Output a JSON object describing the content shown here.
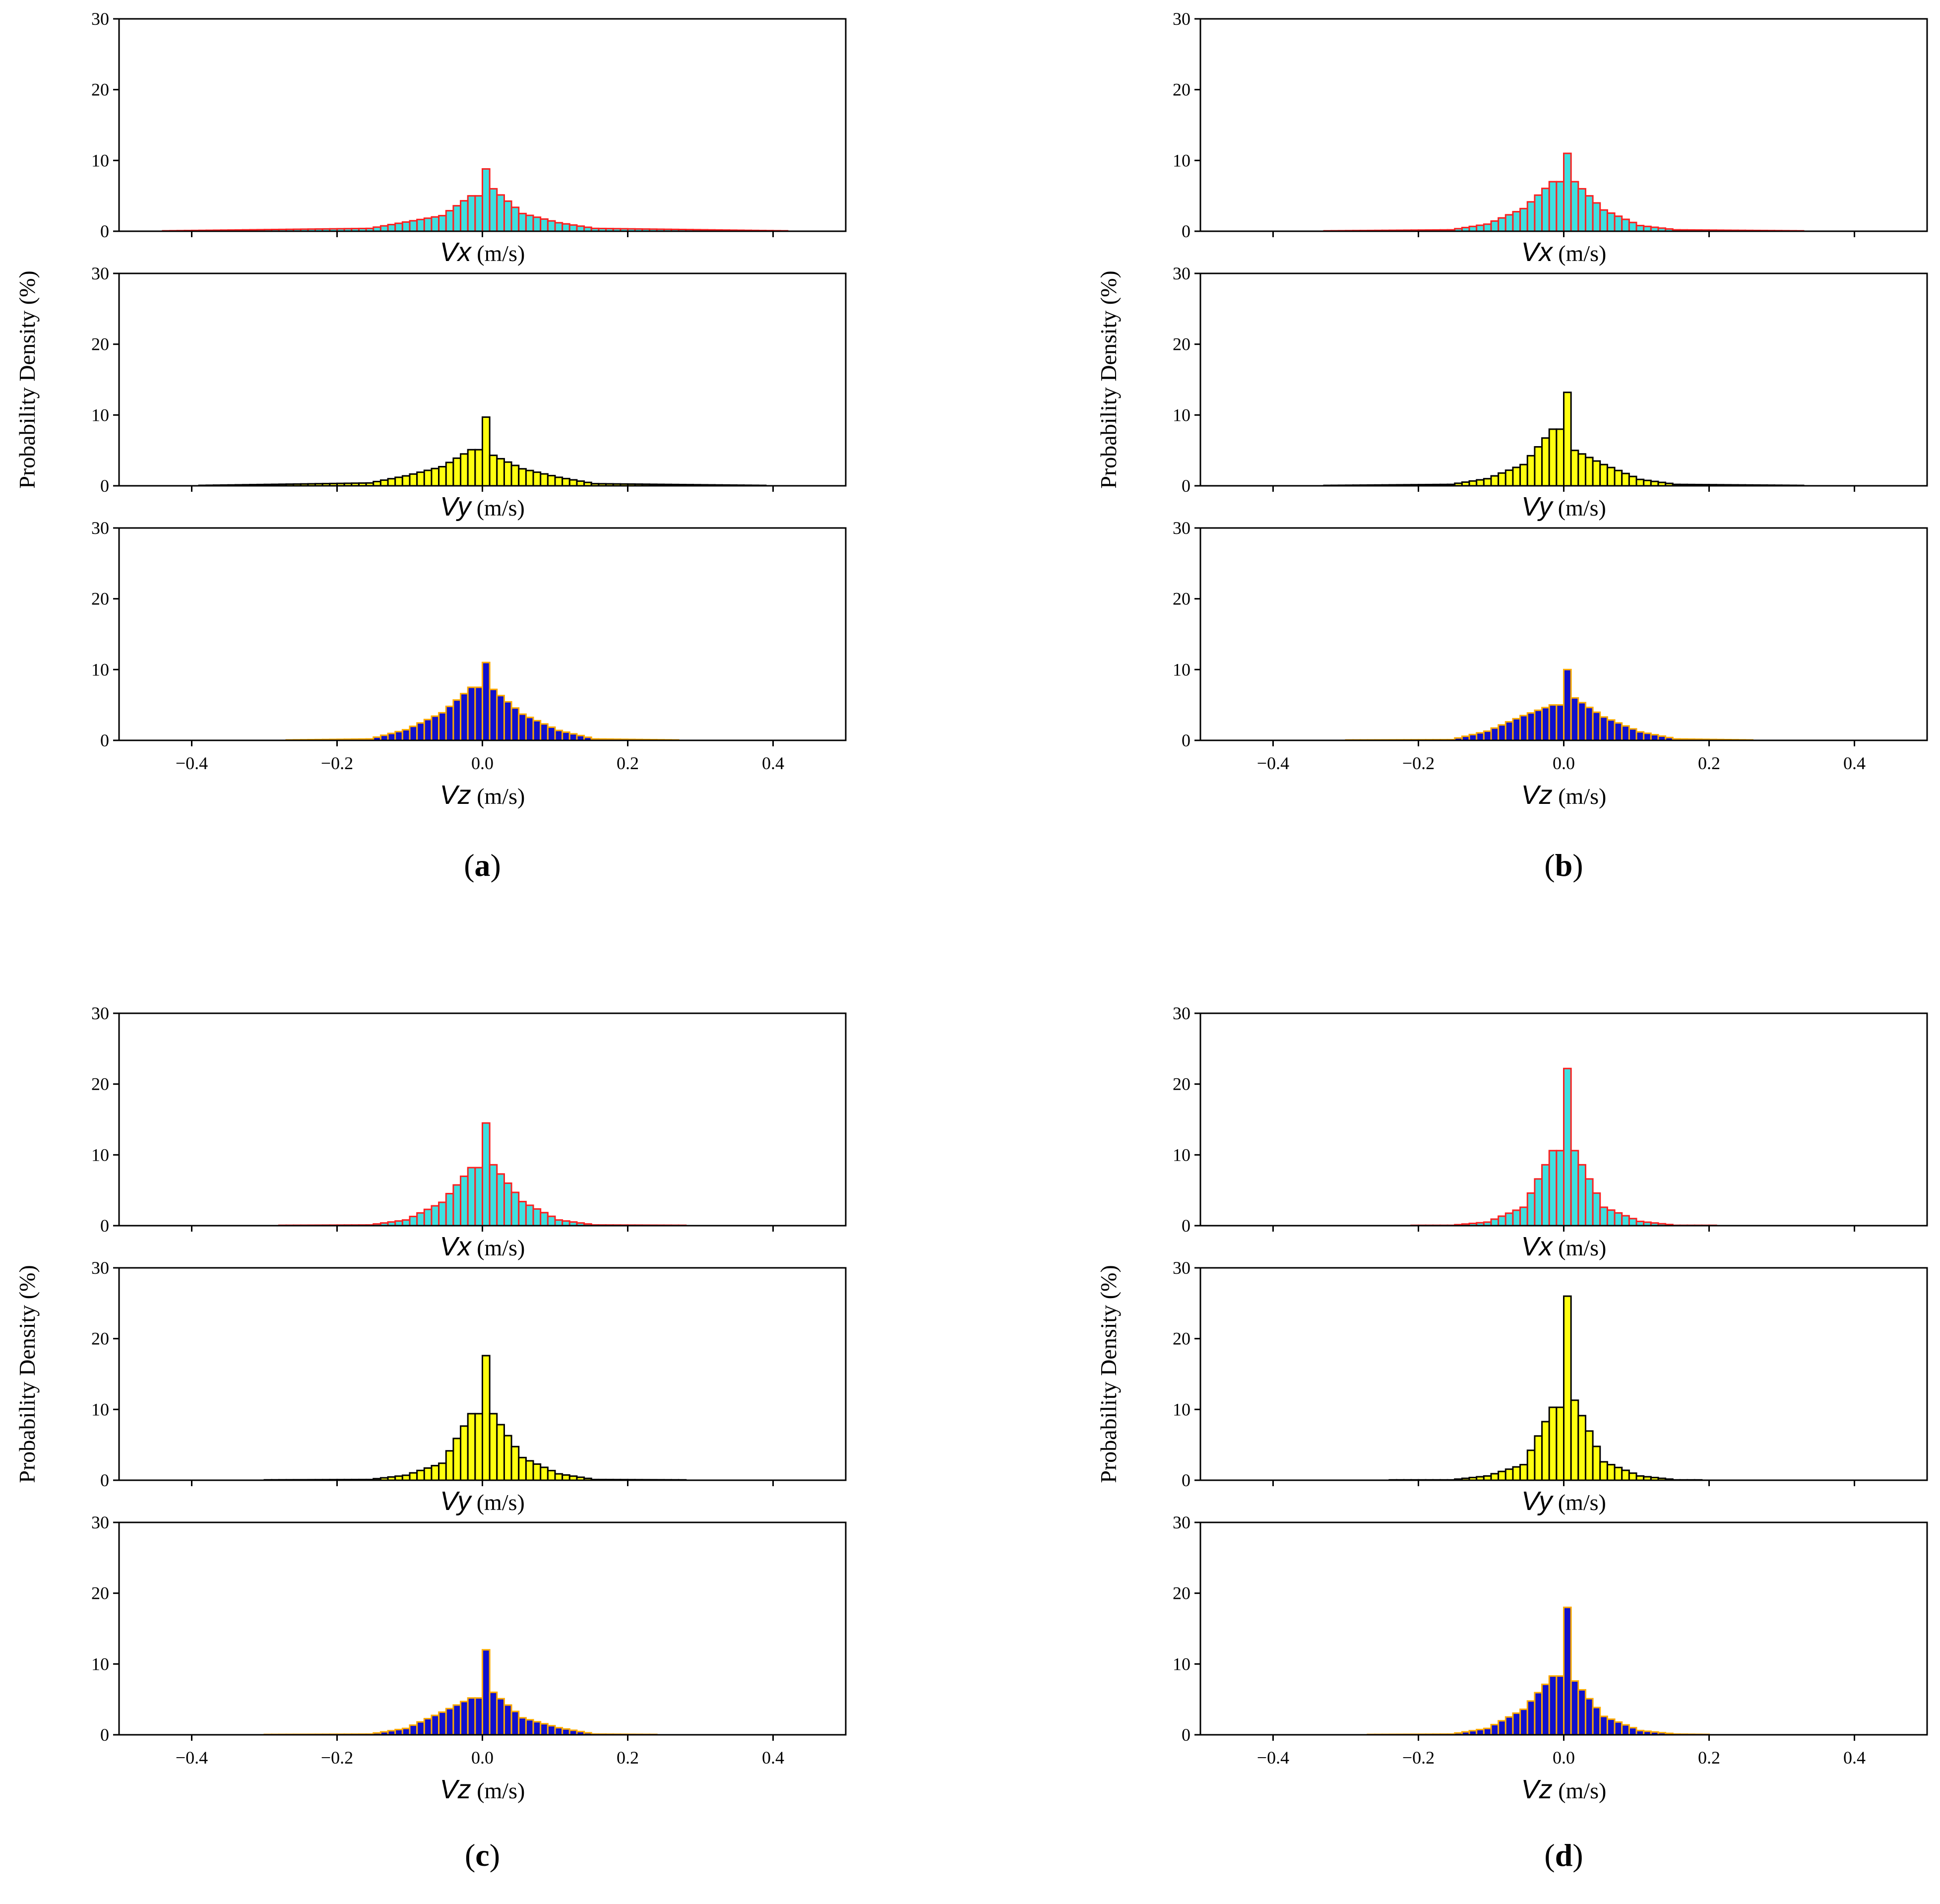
{
  "figure": {
    "ylabel": "Probability Density (%)",
    "unit": "(m/s)",
    "yticks": [
      "0",
      "10",
      "20",
      "30"
    ],
    "xticks": [
      "−0.4",
      "−0.2",
      "0.0",
      "0.2",
      "0.4"
    ]
  },
  "colors": {
    "vx": {
      "fill": "#3ee0e0",
      "edge": "#ff2020"
    },
    "vy": {
      "fill": "#ffff10",
      "edge": "#000000"
    },
    "vz": {
      "fill": "#1010cc",
      "edge": "#ffaa00"
    }
  },
  "chart_data": [
    {
      "panel": "a",
      "subplots": [
        {
          "type": "bar",
          "variable": "Vx",
          "xlabel": "Vx (m/s)",
          "ylabel": "Probability Density (%)",
          "xlim": [
            -0.5,
            0.5
          ],
          "ylim": [
            0,
            30
          ],
          "support": [
            -0.44,
            0.42
          ],
          "peak": 8.8,
          "left": [
            5.0,
            2.2,
            1.3,
            0.4
          ],
          "right": [
            6.0,
            2.5,
            1.2,
            0.4
          ]
        },
        {
          "type": "bar",
          "variable": "Vy",
          "xlabel": "Vy (m/s)",
          "ylabel": "Probability Density (%)",
          "xlim": [
            -0.5,
            0.5
          ],
          "ylim": [
            0,
            30
          ],
          "support": [
            -0.39,
            0.39
          ],
          "peak": 9.7,
          "left": [
            5.1,
            2.7,
            1.4,
            0.4
          ],
          "right": [
            4.3,
            2.4,
            1.2,
            0.3
          ]
        },
        {
          "type": "bar",
          "variable": "Vz",
          "xlabel": "Vz (m/s)",
          "ylabel": "Probability Density (%)",
          "xlim": [
            -0.5,
            0.5
          ],
          "ylim": [
            0,
            30
          ],
          "support": [
            -0.27,
            0.27
          ],
          "peak": 11.0,
          "left": [
            7.5,
            3.9,
            1.5,
            0.2
          ],
          "right": [
            7.2,
            3.7,
            1.4,
            0.2
          ]
        }
      ]
    },
    {
      "panel": "b",
      "subplots": [
        {
          "type": "bar",
          "variable": "Vx",
          "xlabel": "Vx (m/s)",
          "ylabel": "Probability Density (%)",
          "xlim": [
            -0.5,
            0.5
          ],
          "ylim": [
            0,
            30
          ],
          "support": [
            -0.33,
            0.33
          ],
          "peak": 11.0,
          "left": [
            7.0,
            3.2,
            1.0,
            0.2
          ],
          "right": [
            7.0,
            3.0,
            0.8,
            0.2
          ]
        },
        {
          "type": "bar",
          "variable": "Vy",
          "xlabel": "Vy (m/s)",
          "ylabel": "Probability Density (%)",
          "xlim": [
            -0.5,
            0.5
          ],
          "ylim": [
            0,
            30
          ],
          "support": [
            -0.33,
            0.33
          ],
          "peak": 13.2,
          "left": [
            8.0,
            3.0,
            1.0,
            0.2
          ],
          "right": [
            5.0,
            3.0,
            0.9,
            0.2
          ]
        },
        {
          "type": "bar",
          "variable": "Vz",
          "xlabel": "Vz (m/s)",
          "ylabel": "Probability Density (%)",
          "xlim": [
            -0.5,
            0.5
          ],
          "ylim": [
            0,
            30
          ],
          "support": [
            -0.3,
            0.26
          ],
          "peak": 10.0,
          "left": [
            5.0,
            3.5,
            1.3,
            0.1
          ],
          "right": [
            6.0,
            3.3,
            1.2,
            0.2
          ]
        }
      ]
    },
    {
      "panel": "c",
      "subplots": [
        {
          "type": "bar",
          "variable": "Vx",
          "xlabel": "Vx (m/s)",
          "ylabel": "Probability Density (%)",
          "xlim": [
            -0.5,
            0.5
          ],
          "ylim": [
            0,
            30
          ],
          "support": [
            -0.28,
            0.28
          ],
          "peak": 14.5,
          "left": [
            8.2,
            3.3,
            0.8,
            0.1
          ],
          "right": [
            8.6,
            3.4,
            0.8,
            0.1
          ]
        },
        {
          "type": "bar",
          "variable": "Vy",
          "xlabel": "Vy (m/s)",
          "ylabel": "Probability Density (%)",
          "xlim": [
            -0.5,
            0.5
          ],
          "ylim": [
            0,
            30
          ],
          "support": [
            -0.3,
            0.28
          ],
          "peak": 17.6,
          "left": [
            9.4,
            2.4,
            0.7,
            0.1
          ],
          "right": [
            9.4,
            3.2,
            0.9,
            0.1
          ]
        },
        {
          "type": "bar",
          "variable": "Vz",
          "xlabel": "Vz (m/s)",
          "ylabel": "Probability Density (%)",
          "xlim": [
            -0.5,
            0.5
          ],
          "ylim": [
            0,
            30
          ],
          "support": [
            -0.3,
            0.24
          ],
          "peak": 12.0,
          "left": [
            5.2,
            3.2,
            0.9,
            0.1
          ],
          "right": [
            6.0,
            2.4,
            1.0,
            0.1
          ]
        }
      ]
    },
    {
      "panel": "d",
      "subplots": [
        {
          "type": "bar",
          "variable": "Vx",
          "xlabel": "Vx (m/s)",
          "ylabel": "Probability Density (%)",
          "xlim": [
            -0.5,
            0.5
          ],
          "ylim": [
            0,
            30
          ],
          "support": [
            -0.21,
            0.21
          ],
          "peak": 22.2,
          "left": [
            10.6,
            2.6,
            0.5,
            0.05
          ],
          "right": [
            10.6,
            2.6,
            0.6,
            0.05
          ]
        },
        {
          "type": "bar",
          "variable": "Vy",
          "xlabel": "Vy (m/s)",
          "ylabel": "Probability Density (%)",
          "xlim": [
            -0.5,
            0.5
          ],
          "ylim": [
            0,
            30
          ],
          "support": [
            -0.24,
            0.19
          ],
          "peak": 26.0,
          "left": [
            10.3,
            2.2,
            0.6,
            0.05
          ],
          "right": [
            11.3,
            2.6,
            0.6,
            0.05
          ]
        },
        {
          "type": "bar",
          "variable": "Vz",
          "xlabel": "Vz (m/s)",
          "ylabel": "Probability Density (%)",
          "xlim": [
            -0.5,
            0.5
          ],
          "ylim": [
            0,
            30
          ],
          "support": [
            -0.27,
            0.2
          ],
          "peak": 18.0,
          "left": [
            8.3,
            3.6,
            0.9,
            0.1
          ],
          "right": [
            7.6,
            2.6,
            0.6,
            0.1
          ]
        }
      ]
    }
  ]
}
